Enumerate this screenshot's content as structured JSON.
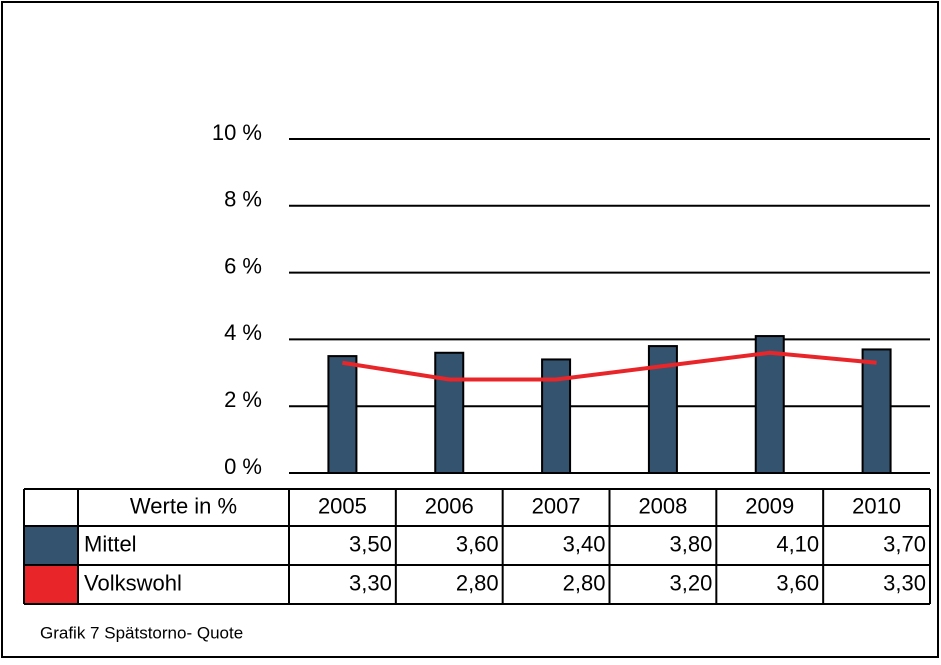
{
  "chart_data": {
    "type": "bar",
    "categories": [
      "2005",
      "2006",
      "2007",
      "2008",
      "2009",
      "2010"
    ],
    "table_header": "Werte in %",
    "series": [
      {
        "name": "Mittel",
        "type": "bar",
        "color": "#34536e",
        "values": [
          3.5,
          3.6,
          3.4,
          3.8,
          4.1,
          3.7
        ],
        "value_labels": [
          "3,50",
          "3,60",
          "3,40",
          "3,80",
          "4,10",
          "3,70"
        ]
      },
      {
        "name": "Volkswohl",
        "type": "line",
        "color": "#e8262a",
        "values": [
          3.3,
          2.8,
          2.8,
          3.2,
          3.6,
          3.3
        ],
        "value_labels": [
          "3,30",
          "2,80",
          "2,80",
          "3,20",
          "3,60",
          "3,30"
        ]
      }
    ],
    "ylim": [
      0,
      10
    ],
    "yticks": [
      {
        "value": 0,
        "label": "0 %"
      },
      {
        "value": 2,
        "label": "2 %"
      },
      {
        "value": 4,
        "label": "4 %"
      },
      {
        "value": 6,
        "label": "6 %"
      },
      {
        "value": 8,
        "label": "8 %"
      },
      {
        "value": 10,
        "label": "10 %"
      }
    ],
    "grid": true,
    "caption": "Grafik 7 Spätstorno- Quote"
  }
}
